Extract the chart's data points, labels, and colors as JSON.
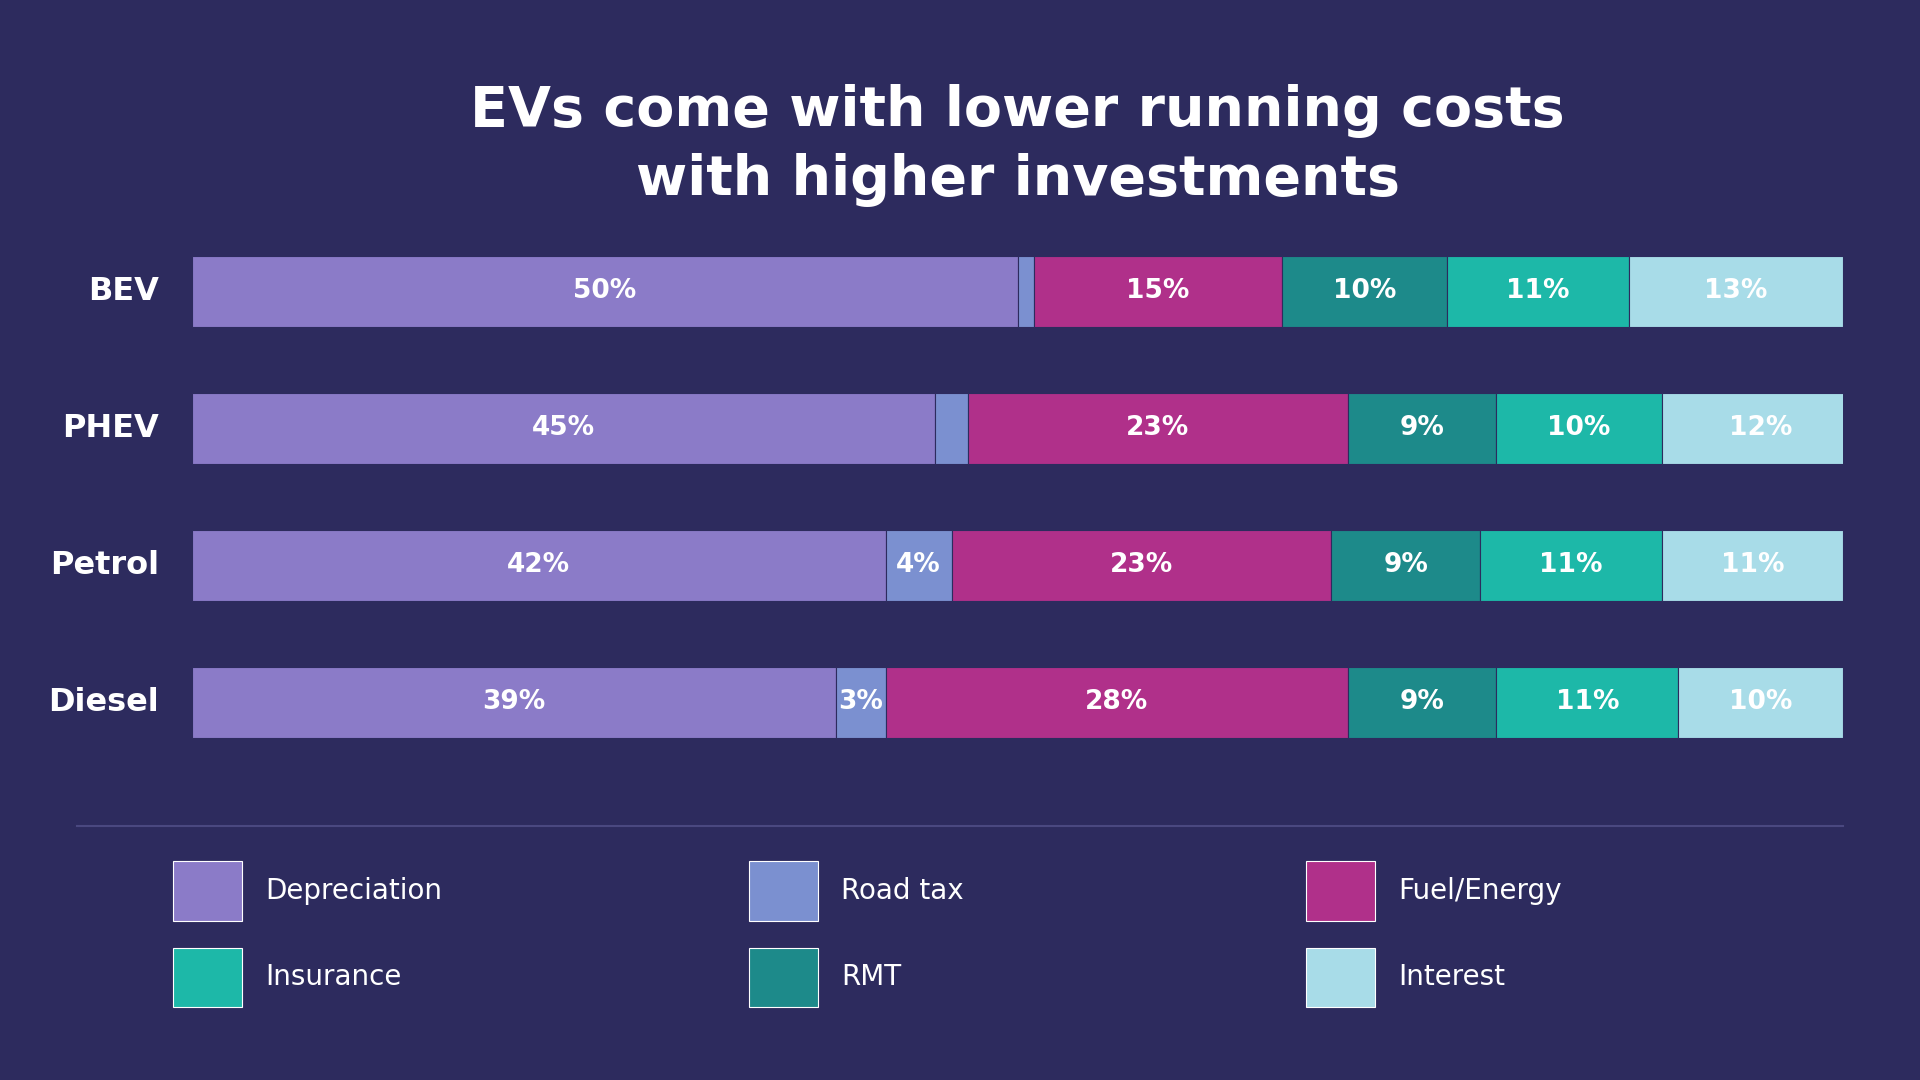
{
  "title": "EVs come with lower running costs\nwith higher investments",
  "background_color": "#2d2b5e",
  "text_color": "#ffffff",
  "categories": [
    "BEV",
    "PHEV",
    "Petrol",
    "Diesel"
  ],
  "segments": {
    "Depreciation": {
      "values": [
        50,
        45,
        42,
        39
      ],
      "color": "#8b7bc8"
    },
    "Road tax": {
      "values": [
        1,
        2,
        4,
        3
      ],
      "color": "#7b90d0"
    },
    "Fuel/Energy": {
      "values": [
        15,
        23,
        23,
        28
      ],
      "color": "#b0308a"
    },
    "RMT": {
      "values": [
        10,
        9,
        9,
        9
      ],
      "color": "#1d8a8a"
    },
    "Insurance": {
      "values": [
        11,
        10,
        11,
        11
      ],
      "color": "#1db8a8"
    },
    "Interest": {
      "values": [
        13,
        12,
        11,
        10
      ],
      "color": "#a8dce8"
    }
  },
  "segment_order": [
    "Depreciation",
    "Road tax",
    "Fuel/Energy",
    "RMT",
    "Insurance",
    "Interest"
  ],
  "label_values": {
    "BEV": [
      50,
      1,
      15,
      10,
      11,
      13
    ],
    "PHEV": [
      45,
      2,
      23,
      9,
      10,
      12
    ],
    "Petrol": [
      42,
      4,
      23,
      9,
      11,
      11
    ],
    "Diesel": [
      39,
      3,
      28,
      9,
      11,
      10
    ]
  },
  "show_labels": {
    "BEV": [
      true,
      false,
      true,
      true,
      true,
      true
    ],
    "PHEV": [
      true,
      false,
      true,
      true,
      true,
      true
    ],
    "Petrol": [
      true,
      true,
      true,
      true,
      true,
      true
    ],
    "Diesel": [
      true,
      true,
      true,
      true,
      true,
      true
    ]
  },
  "bar_height": 0.52,
  "legend_colors": {
    "Depreciation": "#8b7bc8",
    "Road tax": "#7b90d0",
    "Fuel/Energy": "#b0308a",
    "Insurance": "#1db8a8",
    "RMT": "#1d8a8a",
    "Interest": "#a8dce8"
  },
  "legend_order_row1": [
    "Depreciation",
    "Road tax",
    "Fuel/Energy"
  ],
  "legend_order_row2": [
    "Insurance",
    "RMT",
    "Interest"
  ],
  "separator_color": "#4a4880",
  "bar_edge_color": "#2d2b5e",
  "bar_linewidth": 0.8
}
